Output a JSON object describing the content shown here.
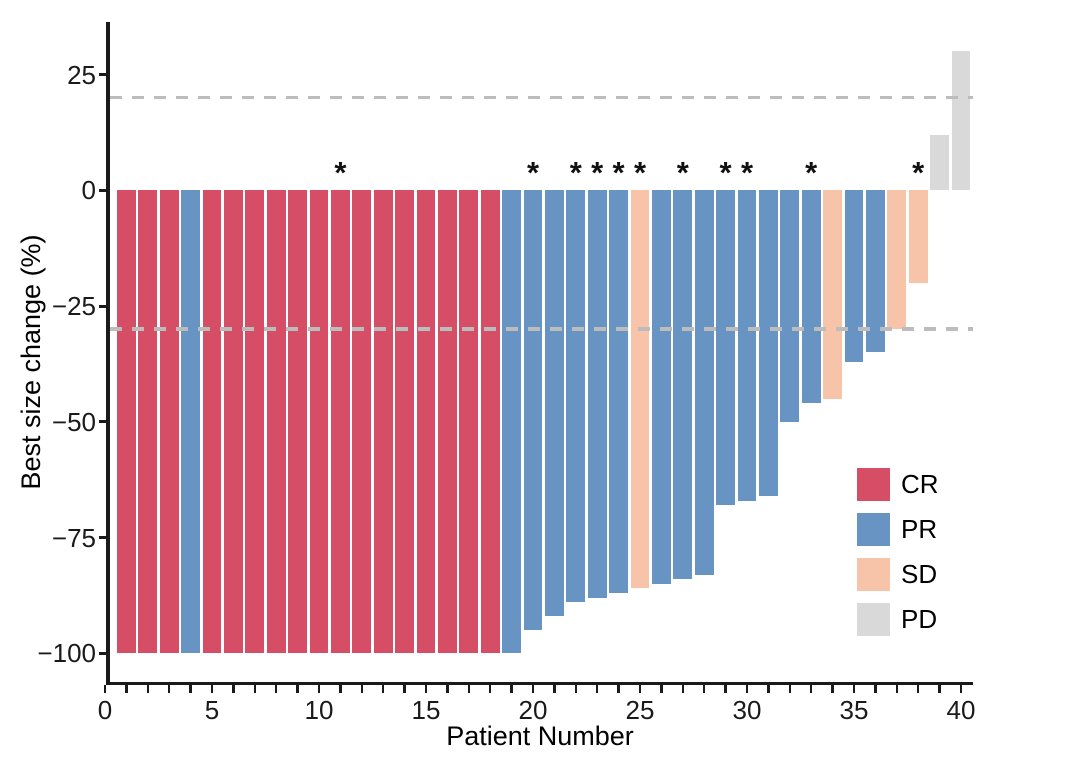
{
  "chart_data": {
    "type": "bar",
    "subtype": "waterfall",
    "title": "",
    "xlabel": "Patient Number",
    "ylabel": "Best size change (%)",
    "x_axis": {
      "range": [
        0,
        40
      ],
      "minor_tick_every": 1,
      "ticks": [
        {
          "v": 0,
          "label": "0"
        },
        {
          "v": 5,
          "label": "5"
        },
        {
          "v": 10,
          "label": "10"
        },
        {
          "v": 15,
          "label": "15"
        },
        {
          "v": 20,
          "label": "20"
        },
        {
          "v": 25,
          "label": "25"
        },
        {
          "v": 30,
          "label": "30"
        },
        {
          "v": 35,
          "label": "35"
        },
        {
          "v": 40,
          "label": "40"
        }
      ]
    },
    "y_axis": {
      "range": [
        -108,
        36
      ],
      "ticks": [
        {
          "v": 25,
          "label": "25"
        },
        {
          "v": 0,
          "label": "0"
        },
        {
          "v": -25,
          "label": "−25"
        },
        {
          "v": -50,
          "label": "−50"
        },
        {
          "v": -75,
          "label": "−75"
        },
        {
          "v": -100,
          "label": "−100"
        }
      ]
    },
    "reference_lines": [
      {
        "y": 20,
        "style": "dashed",
        "color": "#bcbcbc"
      },
      {
        "y": -30,
        "style": "dashed",
        "color": "#bcbcbc"
      }
    ],
    "significance_marker": "*",
    "colors": {
      "CR": "#d64d66",
      "PR": "#6894c4",
      "SD": "#f7c3a9",
      "PD": "#d9d9d9",
      "reference_line": "#bcbcbc",
      "axis": "#1a1a1a"
    },
    "legend": {
      "position": "inside-right",
      "items": [
        {
          "label": "CR",
          "color": "#d64d66"
        },
        {
          "label": "PR",
          "color": "#6894c4"
        },
        {
          "label": "SD",
          "color": "#f7c3a9"
        },
        {
          "label": "PD",
          "color": "#d9d9d9"
        }
      ]
    },
    "patients": [
      {
        "n": 1,
        "value": -100,
        "response": "CR",
        "star": false
      },
      {
        "n": 2,
        "value": -100,
        "response": "CR",
        "star": false
      },
      {
        "n": 3,
        "value": -100,
        "response": "CR",
        "star": false
      },
      {
        "n": 4,
        "value": -100,
        "response": "PR",
        "star": false
      },
      {
        "n": 5,
        "value": -100,
        "response": "CR",
        "star": false
      },
      {
        "n": 6,
        "value": -100,
        "response": "CR",
        "star": false
      },
      {
        "n": 7,
        "value": -100,
        "response": "CR",
        "star": false
      },
      {
        "n": 8,
        "value": -100,
        "response": "CR",
        "star": false
      },
      {
        "n": 9,
        "value": -100,
        "response": "CR",
        "star": false
      },
      {
        "n": 10,
        "value": -100,
        "response": "CR",
        "star": false
      },
      {
        "n": 11,
        "value": -100,
        "response": "CR",
        "star": true
      },
      {
        "n": 12,
        "value": -100,
        "response": "CR",
        "star": false
      },
      {
        "n": 13,
        "value": -100,
        "response": "CR",
        "star": false
      },
      {
        "n": 14,
        "value": -100,
        "response": "CR",
        "star": false
      },
      {
        "n": 15,
        "value": -100,
        "response": "CR",
        "star": false
      },
      {
        "n": 16,
        "value": -100,
        "response": "CR",
        "star": false
      },
      {
        "n": 17,
        "value": -100,
        "response": "CR",
        "star": false
      },
      {
        "n": 18,
        "value": -100,
        "response": "CR",
        "star": false
      },
      {
        "n": 19,
        "value": -100,
        "response": "PR",
        "star": false
      },
      {
        "n": 20,
        "value": -95,
        "response": "PR",
        "star": true
      },
      {
        "n": 21,
        "value": -92,
        "response": "PR",
        "star": false
      },
      {
        "n": 22,
        "value": -89,
        "response": "PR",
        "star": true
      },
      {
        "n": 23,
        "value": -88,
        "response": "PR",
        "star": true
      },
      {
        "n": 24,
        "value": -87,
        "response": "PR",
        "star": true
      },
      {
        "n": 25,
        "value": -86,
        "response": "SD",
        "star": true
      },
      {
        "n": 26,
        "value": -85,
        "response": "PR",
        "star": false
      },
      {
        "n": 27,
        "value": -84,
        "response": "PR",
        "star": true
      },
      {
        "n": 28,
        "value": -83,
        "response": "PR",
        "star": false
      },
      {
        "n": 29,
        "value": -68,
        "response": "PR",
        "star": true
      },
      {
        "n": 30,
        "value": -67,
        "response": "PR",
        "star": true
      },
      {
        "n": 31,
        "value": -66,
        "response": "PR",
        "star": false
      },
      {
        "n": 32,
        "value": -50,
        "response": "PR",
        "star": false
      },
      {
        "n": 33,
        "value": -46,
        "response": "PR",
        "star": true
      },
      {
        "n": 34,
        "value": -45,
        "response": "SD",
        "star": false
      },
      {
        "n": 35,
        "value": -37,
        "response": "PR",
        "star": false
      },
      {
        "n": 36,
        "value": -35,
        "response": "PR",
        "star": false
      },
      {
        "n": 37,
        "value": -30,
        "response": "SD",
        "star": false
      },
      {
        "n": 38,
        "value": -20,
        "response": "SD",
        "star": true
      },
      {
        "n": 39,
        "value": 12,
        "response": "PD",
        "star": false
      },
      {
        "n": 40,
        "value": 30,
        "response": "PD",
        "star": false
      }
    ]
  }
}
